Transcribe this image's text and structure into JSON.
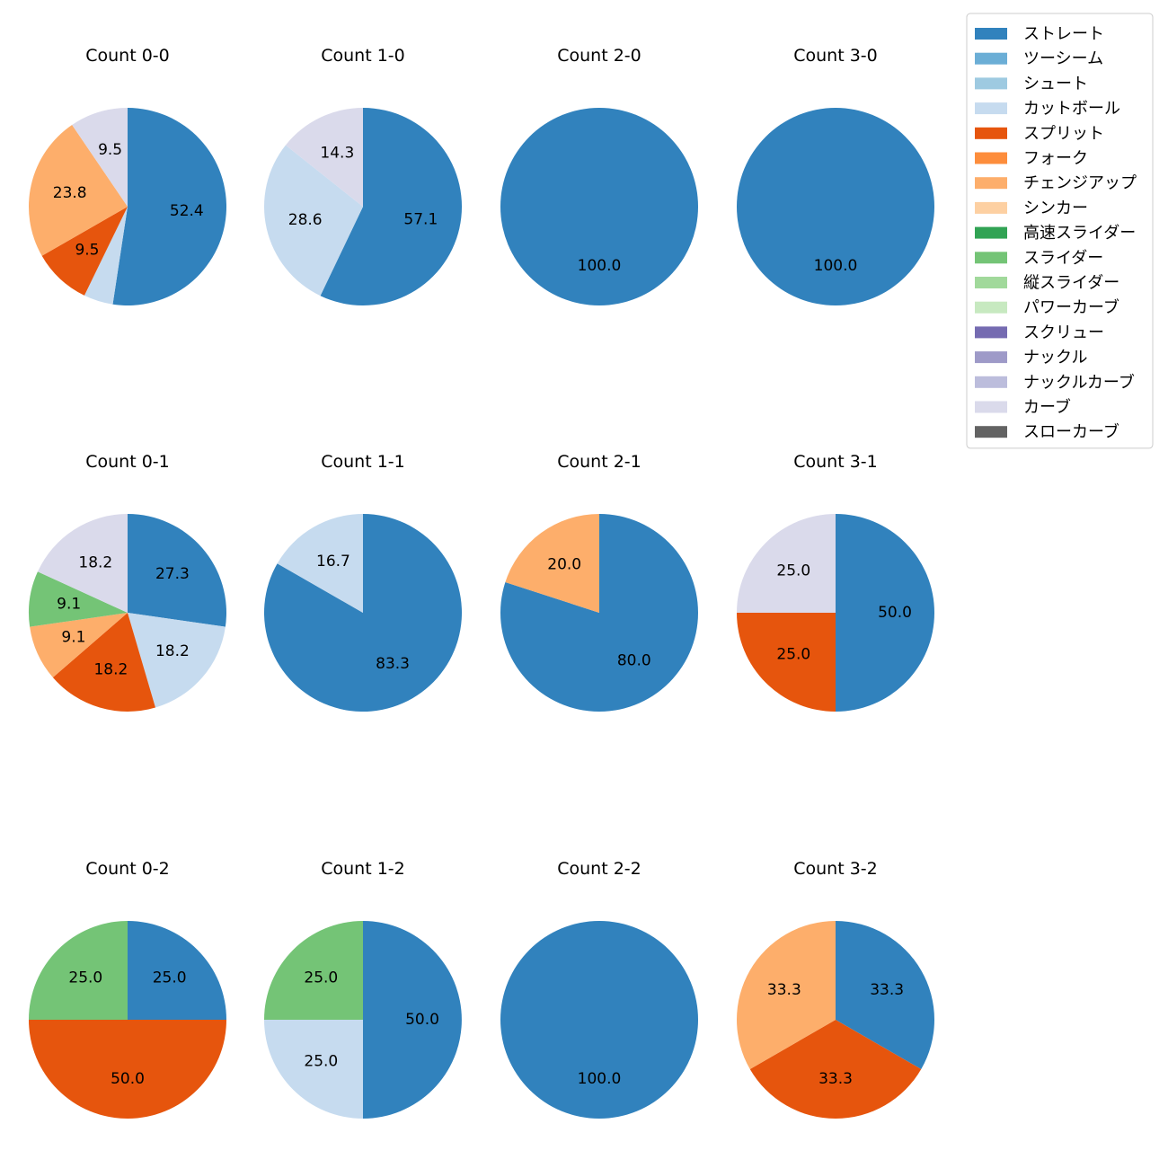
{
  "chart_data": {
    "type": "pie",
    "legend": {
      "placement": "top-right",
      "entries": [
        {
          "name": "ストレート",
          "color": "#3182bd"
        },
        {
          "name": "ツーシーム",
          "color": "#6baed6"
        },
        {
          "name": "シュート",
          "color": "#9ecae1"
        },
        {
          "name": "カットボール",
          "color": "#c6dbef"
        },
        {
          "name": "スプリット",
          "color": "#e6550d"
        },
        {
          "name": "フォーク",
          "color": "#fd8d3c"
        },
        {
          "name": "チェンジアップ",
          "color": "#fdae6b"
        },
        {
          "name": "シンカー",
          "color": "#fdd0a2"
        },
        {
          "name": "高速スライダー",
          "color": "#31a354"
        },
        {
          "name": "スライダー",
          "color": "#74c476"
        },
        {
          "name": "縦スライダー",
          "color": "#a1d99b"
        },
        {
          "name": "パワーカーブ",
          "color": "#c7e9c0"
        },
        {
          "name": "スクリュー",
          "color": "#756bb1"
        },
        {
          "name": "ナックル",
          "color": "#9e9ac8"
        },
        {
          "name": "ナックルカーブ",
          "color": "#bcbddc"
        },
        {
          "name": "カーブ",
          "color": "#dadaeb"
        },
        {
          "name": "スローカーブ",
          "color": "#636363"
        }
      ]
    },
    "pies": [
      {
        "title": "Count 0-0",
        "slices": [
          {
            "pitch": "ストレート",
            "value": 52.4,
            "label": "52.4"
          },
          {
            "pitch": "カットボール",
            "value": 4.8,
            "label": ""
          },
          {
            "pitch": "スプリット",
            "value": 9.5,
            "label": "9.5"
          },
          {
            "pitch": "チェンジアップ",
            "value": 23.8,
            "label": "23.8"
          },
          {
            "pitch": "カーブ",
            "value": 9.5,
            "label": "9.5"
          }
        ]
      },
      {
        "title": "Count 1-0",
        "slices": [
          {
            "pitch": "ストレート",
            "value": 57.1,
            "label": "57.1"
          },
          {
            "pitch": "カットボール",
            "value": 28.6,
            "label": "28.6"
          },
          {
            "pitch": "カーブ",
            "value": 14.3,
            "label": "14.3"
          }
        ]
      },
      {
        "title": "Count 2-0",
        "slices": [
          {
            "pitch": "ストレート",
            "value": 100.0,
            "label": "100.0"
          }
        ]
      },
      {
        "title": "Count 3-0",
        "slices": [
          {
            "pitch": "ストレート",
            "value": 100.0,
            "label": "100.0"
          }
        ]
      },
      {
        "title": "Count 0-1",
        "slices": [
          {
            "pitch": "ストレート",
            "value": 27.3,
            "label": "27.3"
          },
          {
            "pitch": "カットボール",
            "value": 18.2,
            "label": "18.2"
          },
          {
            "pitch": "スプリット",
            "value": 18.2,
            "label": "18.2"
          },
          {
            "pitch": "チェンジアップ",
            "value": 9.1,
            "label": "9.1"
          },
          {
            "pitch": "スライダー",
            "value": 9.1,
            "label": "9.1"
          },
          {
            "pitch": "カーブ",
            "value": 18.2,
            "label": "18.2"
          }
        ]
      },
      {
        "title": "Count 1-1",
        "slices": [
          {
            "pitch": "ストレート",
            "value": 83.3,
            "label": "83.3"
          },
          {
            "pitch": "カットボール",
            "value": 16.7,
            "label": "16.7"
          }
        ]
      },
      {
        "title": "Count 2-1",
        "slices": [
          {
            "pitch": "ストレート",
            "value": 80.0,
            "label": "80.0"
          },
          {
            "pitch": "チェンジアップ",
            "value": 20.0,
            "label": "20.0"
          }
        ]
      },
      {
        "title": "Count 3-1",
        "slices": [
          {
            "pitch": "ストレート",
            "value": 50.0,
            "label": "50.0"
          },
          {
            "pitch": "スプリット",
            "value": 25.0,
            "label": "25.0"
          },
          {
            "pitch": "カーブ",
            "value": 25.0,
            "label": "25.0"
          }
        ]
      },
      {
        "title": "Count 0-2",
        "slices": [
          {
            "pitch": "ストレート",
            "value": 25.0,
            "label": "25.0"
          },
          {
            "pitch": "スプリット",
            "value": 50.0,
            "label": "50.0"
          },
          {
            "pitch": "スライダー",
            "value": 25.0,
            "label": "25.0"
          }
        ]
      },
      {
        "title": "Count 1-2",
        "slices": [
          {
            "pitch": "ストレート",
            "value": 50.0,
            "label": "50.0"
          },
          {
            "pitch": "カットボール",
            "value": 25.0,
            "label": "25.0"
          },
          {
            "pitch": "スライダー",
            "value": 25.0,
            "label": "25.0"
          }
        ]
      },
      {
        "title": "Count 2-2",
        "slices": [
          {
            "pitch": "ストレート",
            "value": 100.0,
            "label": "100.0"
          }
        ]
      },
      {
        "title": "Count 3-2",
        "slices": [
          {
            "pitch": "ストレート",
            "value": 33.3,
            "label": "33.3"
          },
          {
            "pitch": "スプリット",
            "value": 33.3,
            "label": "33.3"
          },
          {
            "pitch": "チェンジアップ",
            "value": 33.3,
            "label": "33.3"
          }
        ]
      }
    ]
  }
}
